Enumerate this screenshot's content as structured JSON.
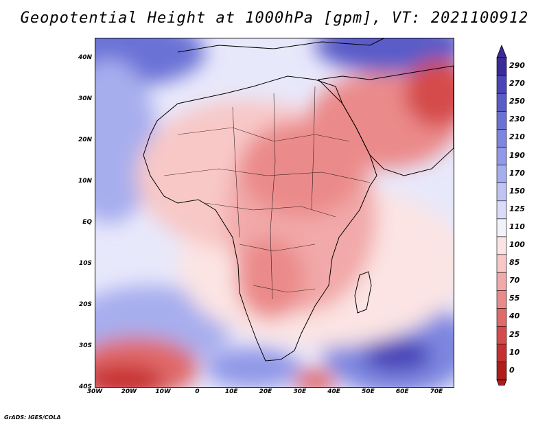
{
  "title": "Geopotential Height at 1000hPa [gpm], VT: 2021100912",
  "credit": "GrADS: IGES/COLA",
  "map": {
    "lat_labels": [
      "40N",
      "30N",
      "20N",
      "10N",
      "EQ",
      "10S",
      "20S",
      "30S",
      "40S"
    ],
    "lon_labels": [
      "30W",
      "20W",
      "10W",
      "0",
      "10E",
      "20E",
      "30E",
      "40E",
      "50E",
      "60E",
      "70E"
    ],
    "lon_range": [
      -30,
      75
    ],
    "lat_range": [
      -40,
      45
    ]
  },
  "colorbar": {
    "levels": [
      "290",
      "270",
      "250",
      "230",
      "210",
      "190",
      "170",
      "150",
      "125",
      "110",
      "100",
      "85",
      "70",
      "55",
      "40",
      "25",
      "10",
      "0"
    ],
    "colors": [
      "#3a2a9a",
      "#4a45b8",
      "#5a5cc8",
      "#6b72d6",
      "#7d86e0",
      "#9199e8",
      "#a7aeee",
      "#c0c4f4",
      "#d9dbf8",
      "#f2f2fa",
      "#fbe4e3",
      "#f8c8c7",
      "#f2a9a9",
      "#eb8a8a",
      "#e06969",
      "#d54c4c",
      "#c73030",
      "#b01c1c"
    ]
  }
}
